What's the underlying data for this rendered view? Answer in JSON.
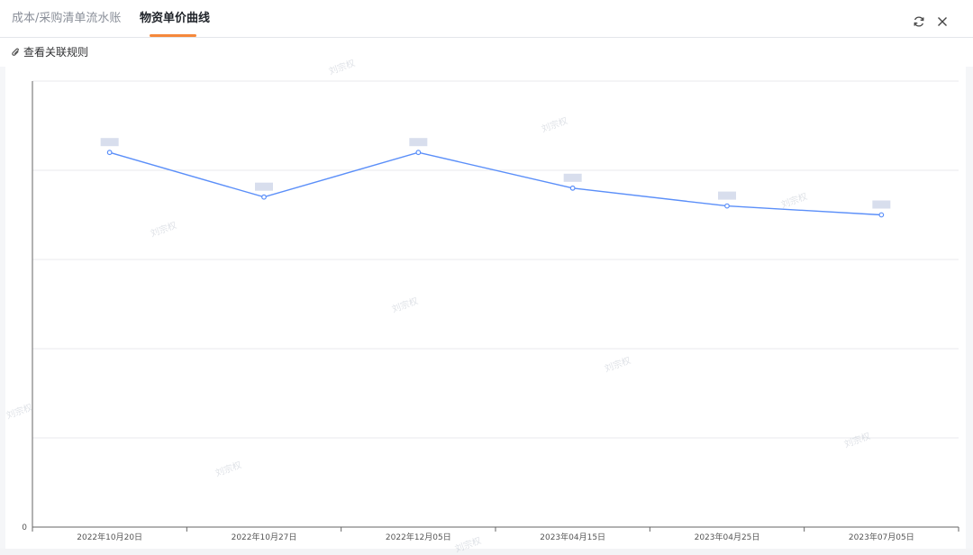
{
  "tabs": [
    {
      "label": "成本/采购清单流水账",
      "active": false
    },
    {
      "label": "物资单价曲线",
      "active": true
    }
  ],
  "window_controls": {
    "refresh_icon": "refresh-icon",
    "close_icon": "close-icon"
  },
  "toolbar": {
    "rule_link_label": "查看关联规则",
    "rule_link_icon": "paperclip-icon"
  },
  "watermark_text": "刘宗权",
  "colors": {
    "accent": "#f5883b",
    "line": "#5b8ff9",
    "active_tab": "#1f2329",
    "inactive_tab": "#8a8f99"
  },
  "chart_data": {
    "type": "line",
    "categories": [
      "2022年10月20日",
      "2022年10月27日",
      "2022年12月05日",
      "2023年04月15日",
      "2023年04月25日",
      "2023年07月05日"
    ],
    "series": [
      {
        "values": [
          420,
          370,
          420,
          380,
          360,
          350
        ]
      }
    ],
    "y_tick_labels": [
      "0",
      "",
      "",
      "",
      "",
      ""
    ],
    "ylim": [
      0,
      500
    ],
    "grid": true,
    "legend": "none",
    "data_labels_obscured": true
  }
}
